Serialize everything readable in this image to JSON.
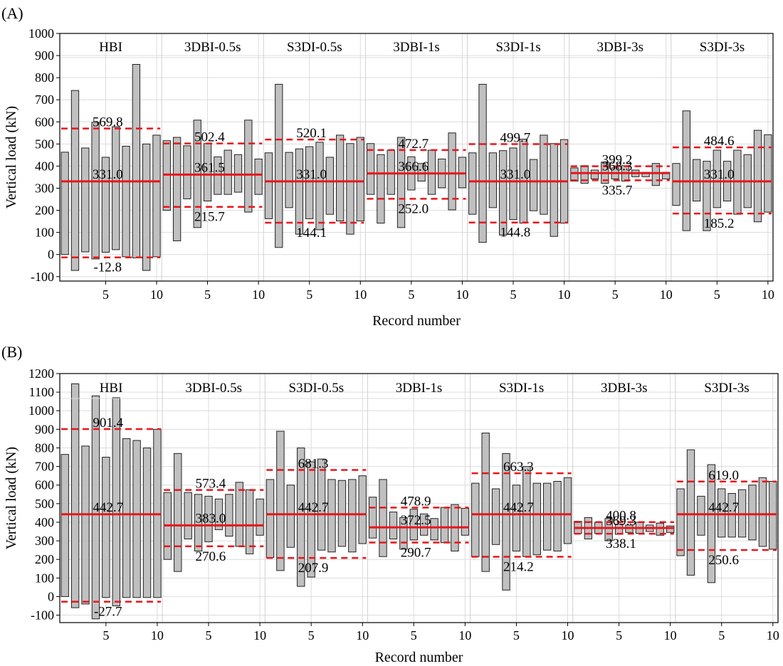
{
  "chart_data": [
    {
      "type": "range-bar",
      "panel_label": "(A)",
      "xlabel": "Record number",
      "ylabel": "Vertical load (kN)",
      "ylim": [
        -120,
        1000
      ],
      "yticks": [
        -100,
        0,
        100,
        200,
        300,
        400,
        500,
        600,
        700,
        800,
        900,
        1000
      ],
      "xticks": [
        5,
        10
      ],
      "grid": true,
      "groups": [
        {
          "name": "HBI",
          "mean": 331.0,
          "upper": 569.8,
          "lower": -12.8,
          "mean_label": "331.0",
          "upper_label": "569.8",
          "lower_label": "-12.8",
          "bars": [
            [
              0,
              463
            ],
            [
              -72,
              742
            ],
            [
              12,
              482
            ],
            [
              -20,
              598
            ],
            [
              10,
              440
            ],
            [
              22,
              578
            ],
            [
              -10,
              490
            ],
            [
              -15,
              860
            ],
            [
              -72,
              500
            ],
            [
              -10,
              540
            ]
          ]
        },
        {
          "name": "3DBI-0.5s",
          "mean": 361.5,
          "upper": 502.4,
          "lower": 215.7,
          "mean_label": "361.5",
          "upper_label": "502.4",
          "lower_label": "215.7",
          "bars": [
            [
              200,
              515
            ],
            [
              62,
              530
            ],
            [
              252,
              492
            ],
            [
              122,
              608
            ],
            [
              242,
              502
            ],
            [
              272,
              442
            ],
            [
              272,
              472
            ],
            [
              282,
              452
            ],
            [
              192,
              608
            ],
            [
              272,
              432
            ]
          ]
        },
        {
          "name": "S3DI-0.5s",
          "mean": 331.0,
          "upper": 520.1,
          "lower": 144.1,
          "mean_label": "331.0",
          "upper_label": "520.1",
          "lower_label": "144.1",
          "bars": [
            [
              162,
              460
            ],
            [
              32,
              770
            ],
            [
              212,
              462
            ],
            [
              92,
              478
            ],
            [
              162,
              488
            ],
            [
              112,
              508
            ],
            [
              182,
              440
            ],
            [
              152,
              540
            ],
            [
              92,
              502
            ],
            [
              152,
              530
            ]
          ]
        },
        {
          "name": "3DBI-1s",
          "mean": 366.6,
          "upper": 472.7,
          "lower": 252.0,
          "mean_label": "366.6",
          "upper_label": "472.7",
          "lower_label": "252.0",
          "bars": [
            [
              272,
              502
            ],
            [
              142,
              452
            ],
            [
              272,
              472
            ],
            [
              122,
              530
            ],
            [
              292,
              442
            ],
            [
              332,
              412
            ],
            [
              272,
              472
            ],
            [
              302,
              432
            ],
            [
              202,
              550
            ],
            [
              302,
              440
            ]
          ]
        },
        {
          "name": "S3DI-1s",
          "mean": 331.0,
          "upper": 499.7,
          "lower": 144.8,
          "mean_label": "331.0",
          "upper_label": "499.7",
          "lower_label": "144.8",
          "bars": [
            [
              182,
              460
            ],
            [
              55,
              770
            ],
            [
              212,
              460
            ],
            [
              88,
              470
            ],
            [
              158,
              482
            ],
            [
              142,
              522
            ],
            [
              198,
              430
            ],
            [
              182,
              540
            ],
            [
              82,
              502
            ],
            [
              142,
              520
            ]
          ]
        },
        {
          "name": "3DBI-3s",
          "mean": 368.3,
          "upper": 399.2,
          "lower": 335.7,
          "mean_label": "368.3",
          "upper_label": "399.2",
          "lower_label": "335.7",
          "bars": [
            [
              332,
              392
            ],
            [
              322,
              402
            ],
            [
              342,
              382
            ],
            [
              322,
              418
            ],
            [
              342,
              392
            ],
            [
              332,
              402
            ],
            [
              352,
              382
            ],
            [
              352,
              372
            ],
            [
              312,
              412
            ],
            [
              342,
              372
            ]
          ]
        },
        {
          "name": "S3DI-3s",
          "mean": 331.0,
          "upper": 484.6,
          "lower": 185.2,
          "mean_label": "331.0",
          "upper_label": "484.6",
          "lower_label": "185.2",
          "bars": [
            [
              222,
              412
            ],
            [
              108,
              650
            ],
            [
              242,
              430
            ],
            [
              108,
              422
            ],
            [
              212,
              472
            ],
            [
              242,
              422
            ],
            [
              182,
              472
            ],
            [
              212,
              452
            ],
            [
              148,
              562
            ],
            [
              192,
              542
            ]
          ]
        }
      ]
    },
    {
      "type": "range-bar",
      "panel_label": "(B)",
      "xlabel": "Record number",
      "ylabel": "Vertical load (kN)",
      "ylim": [
        -140,
        1200
      ],
      "yticks": [
        -100,
        0,
        100,
        200,
        300,
        400,
        500,
        600,
        700,
        800,
        900,
        1000,
        1100,
        1200
      ],
      "xticks": [
        5,
        10
      ],
      "grid": true,
      "groups": [
        {
          "name": "HBI",
          "mean": 442.7,
          "upper": 901.4,
          "lower": -27.7,
          "mean_label": "442.7",
          "upper_label": "901.4",
          "lower_label": "-27.7",
          "bars": [
            [
              0,
              765
            ],
            [
              -60,
              1145
            ],
            [
              -40,
              810
            ],
            [
              -120,
              1080
            ],
            [
              -5,
              750
            ],
            [
              -50,
              1070
            ],
            [
              -5,
              850
            ],
            [
              -5,
              840
            ],
            [
              -5,
              800
            ],
            [
              -5,
              900
            ]
          ]
        },
        {
          "name": "3DBI-0.5s",
          "mean": 383.0,
          "upper": 573.4,
          "lower": 270.6,
          "mean_label": "383.0",
          "upper_label": "573.4",
          "lower_label": "270.6",
          "bars": [
            [
              200,
              560
            ],
            [
              135,
              770
            ],
            [
              310,
              560
            ],
            [
              245,
              550
            ],
            [
              295,
              540
            ],
            [
              360,
              525
            ],
            [
              325,
              550
            ],
            [
              270,
              615
            ],
            [
              230,
              575
            ],
            [
              330,
              525
            ]
          ]
        },
        {
          "name": "S3DI-0.5s",
          "mean": 442.7,
          "upper": 681.3,
          "lower": 207.9,
          "mean_label": "442.7",
          "upper_label": "681.3",
          "lower_label": "207.9",
          "bars": [
            [
              210,
              630
            ],
            [
              140,
              890
            ],
            [
              265,
              600
            ],
            [
              55,
              800
            ],
            [
              105,
              725
            ],
            [
              250,
              740
            ],
            [
              240,
              630
            ],
            [
              270,
              625
            ],
            [
              240,
              630
            ],
            [
              285,
              650
            ]
          ]
        },
        {
          "name": "3DBI-1s",
          "mean": 372.5,
          "upper": 478.9,
          "lower": 290.7,
          "mean_label": "372.5",
          "upper_label": "478.9",
          "lower_label": "290.7",
          "bars": [
            [
              315,
              535
            ],
            [
              215,
              630
            ],
            [
              310,
              455
            ],
            [
              255,
              425
            ],
            [
              305,
              470
            ],
            [
              330,
              445
            ],
            [
              305,
              420
            ],
            [
              290,
              480
            ],
            [
              245,
              495
            ],
            [
              330,
              475
            ]
          ]
        },
        {
          "name": "S3DI-1s",
          "mean": 442.7,
          "upper": 663.3,
          "lower": 214.2,
          "mean_label": "442.7",
          "upper_label": "663.3",
          "lower_label": "214.2",
          "bars": [
            [
              215,
              610
            ],
            [
              135,
              880
            ],
            [
              280,
              580
            ],
            [
              35,
              770
            ],
            [
              245,
              600
            ],
            [
              215,
              700
            ],
            [
              225,
              610
            ],
            [
              250,
              610
            ],
            [
              245,
              620
            ],
            [
              285,
              640
            ]
          ]
        },
        {
          "name": "3DBI-3s",
          "mean": 369.3,
          "upper": 400.8,
          "lower": 338.1,
          "mean_label": "369.3",
          "upper_label": "400.8",
          "lower_label": "338.1",
          "bars": [
            [
              340,
              405
            ],
            [
              310,
              425
            ],
            [
              340,
              400
            ],
            [
              300,
              420
            ],
            [
              335,
              390
            ],
            [
              345,
              385
            ],
            [
              340,
              400
            ],
            [
              350,
              385
            ],
            [
              330,
              395
            ],
            [
              345,
              380
            ]
          ]
        },
        {
          "name": "S3DI-3s",
          "mean": 442.7,
          "upper": 619.0,
          "lower": 250.6,
          "mean_label": "442.7",
          "upper_label": "619.0",
          "lower_label": "250.6",
          "bars": [
            [
              220,
              580
            ],
            [
              115,
              790
            ],
            [
              330,
              540
            ],
            [
              75,
              710
            ],
            [
              320,
              580
            ],
            [
              320,
              555
            ],
            [
              320,
              575
            ],
            [
              305,
              600
            ],
            [
              270,
              640
            ],
            [
              255,
              620
            ]
          ]
        }
      ]
    }
  ]
}
